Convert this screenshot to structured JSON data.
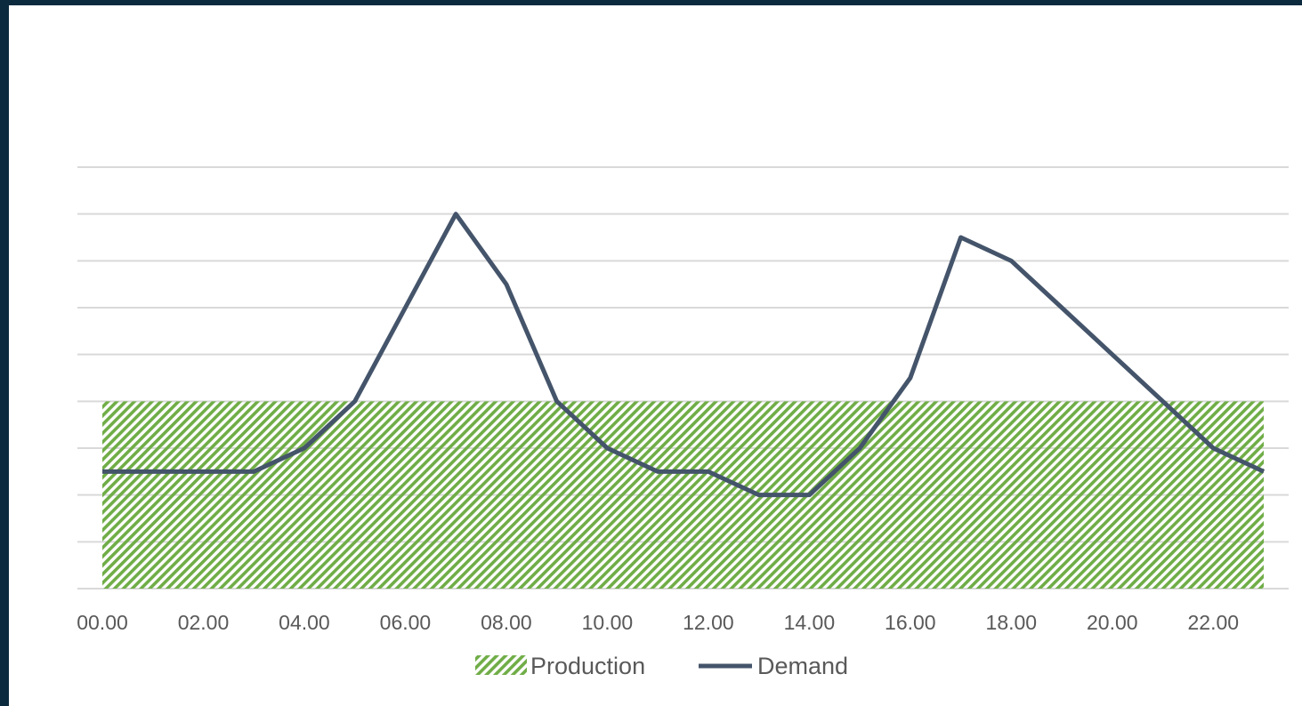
{
  "chart_data": {
    "type": "line",
    "title": "",
    "xlabel": "",
    "ylabel": "",
    "x": [
      0,
      1,
      2,
      3,
      4,
      5,
      6,
      7,
      8,
      9,
      10,
      11,
      12,
      13,
      14,
      15,
      16,
      17,
      18,
      19,
      20,
      21,
      22,
      23
    ],
    "tick_labels": [
      "00.00",
      "02.00",
      "04.00",
      "06.00",
      "08.00",
      "10.00",
      "12.00",
      "14.00",
      "16.00",
      "18.00",
      "20.00",
      "22.00"
    ],
    "tick_hours": [
      0,
      2,
      4,
      6,
      8,
      10,
      12,
      14,
      16,
      18,
      20,
      22
    ],
    "ylim": [
      0,
      9
    ],
    "y_gridlines": [
      1,
      2,
      3,
      4,
      5,
      6,
      7,
      8,
      9
    ],
    "grid": true,
    "legend_position": "bottom",
    "series": [
      {
        "name": "Production",
        "style": "area",
        "fill": "diagonal-hatch",
        "color": "#70ad47",
        "values": [
          4,
          4,
          4,
          4,
          4,
          4,
          4,
          4,
          4,
          4,
          4,
          4,
          4,
          4,
          4,
          4,
          4,
          4,
          4,
          4,
          4,
          4,
          4,
          4
        ]
      },
      {
        "name": "Demand",
        "style": "line",
        "color": "#44546a",
        "values": [
          2.5,
          2.5,
          2.5,
          2.5,
          3,
          4,
          6,
          8,
          6.5,
          4,
          3,
          2.5,
          2.5,
          2,
          2,
          3,
          4.5,
          7.5,
          7,
          6,
          5,
          4,
          3,
          2.5
        ]
      }
    ]
  }
}
